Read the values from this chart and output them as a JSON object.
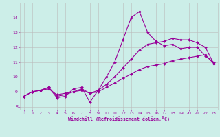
{
  "background_color": "#cceee8",
  "line_color": "#990099",
  "grid_color": "#bbbbbb",
  "xlabel": "Windchill (Refroidissement éolien,°C)",
  "xlabel_color": "#990099",
  "ylim": [
    7.8,
    15.0
  ],
  "xlim": [
    -0.5,
    23.5
  ],
  "yticks": [
    8,
    9,
    10,
    11,
    12,
    13,
    14
  ],
  "xticks": [
    0,
    1,
    2,
    3,
    4,
    5,
    6,
    7,
    8,
    9,
    10,
    11,
    12,
    13,
    14,
    15,
    16,
    17,
    18,
    19,
    20,
    21,
    22,
    23
  ],
  "series": [
    {
      "x": [
        0,
        1,
        2,
        3,
        4,
        5,
        6,
        7,
        8,
        9,
        10,
        11,
        12,
        13,
        14,
        15,
        16,
        17,
        18,
        19,
        20,
        21,
        22,
        23
      ],
      "y": [
        8.7,
        9.0,
        9.1,
        9.3,
        8.6,
        8.7,
        9.2,
        9.3,
        8.3,
        9.1,
        10.0,
        11.0,
        12.5,
        14.0,
        14.4,
        13.0,
        12.4,
        12.1,
        12.2,
        11.9,
        12.0,
        12.0,
        11.4,
        11.0
      ]
    },
    {
      "x": [
        0,
        1,
        2,
        3,
        4,
        5,
        6,
        7,
        8,
        9,
        10,
        11,
        12,
        13,
        14,
        15,
        16,
        17,
        18,
        19,
        20,
        21,
        22,
        23
      ],
      "y": [
        8.7,
        9.0,
        9.1,
        9.3,
        8.7,
        8.8,
        9.0,
        9.2,
        8.9,
        9.1,
        9.5,
        10.0,
        10.6,
        11.2,
        11.8,
        12.2,
        12.3,
        12.4,
        12.6,
        12.5,
        12.5,
        12.3,
        12.0,
        10.9
      ]
    },
    {
      "x": [
        0,
        1,
        2,
        3,
        4,
        5,
        6,
        7,
        8,
        9,
        10,
        11,
        12,
        13,
        14,
        15,
        16,
        17,
        18,
        19,
        20,
        21,
        22,
        23
      ],
      "y": [
        8.7,
        9.0,
        9.1,
        9.2,
        8.8,
        8.9,
        9.0,
        9.1,
        8.9,
        9.0,
        9.3,
        9.6,
        9.9,
        10.2,
        10.5,
        10.7,
        10.8,
        10.9,
        11.1,
        11.2,
        11.3,
        11.4,
        11.5,
        10.9
      ]
    }
  ]
}
